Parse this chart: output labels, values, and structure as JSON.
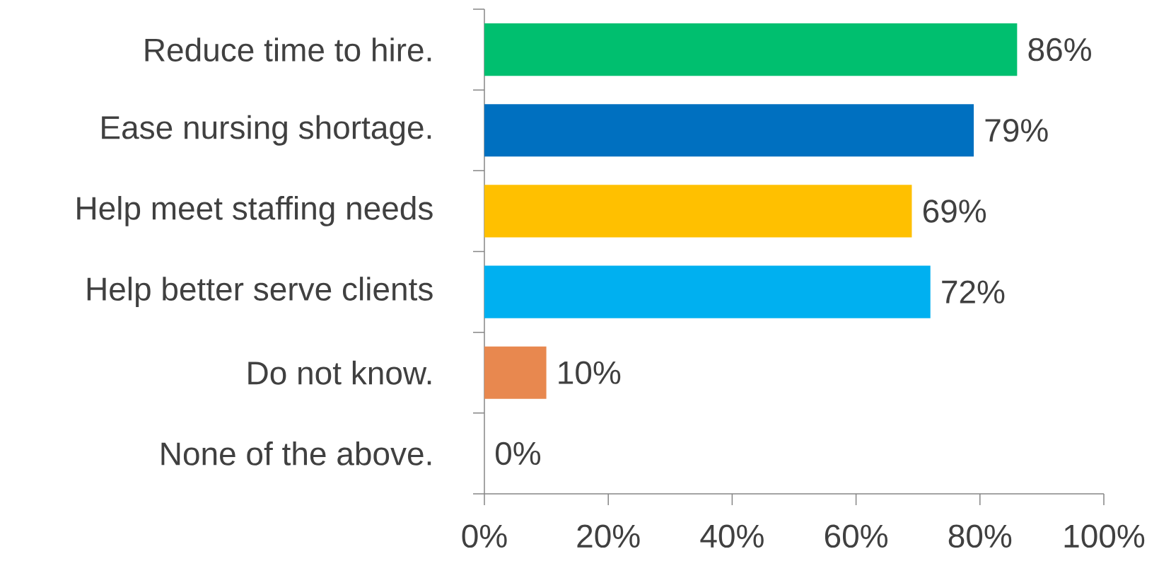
{
  "chart_data": {
    "type": "bar",
    "orientation": "horizontal",
    "categories": [
      "Reduce time to hire.",
      "Ease nursing shortage.",
      "Help meet staffing needs",
      "Help better serve clients",
      "Do not know.",
      "None of the above."
    ],
    "values": [
      86,
      79,
      69,
      72,
      10,
      0
    ],
    "colors": [
      "#00bf6f",
      "#0070c0",
      "#ffc000",
      "#00b0f0",
      "#e8884f",
      "#a5a5a5"
    ],
    "value_labels": [
      "86%",
      "79%",
      "69%",
      "72%",
      "10%",
      "0%"
    ],
    "xlim": [
      0,
      100
    ],
    "xticks": [
      {
        "value": 0,
        "label": "0%"
      },
      {
        "value": 20,
        "label": "20%"
      },
      {
        "value": 40,
        "label": "40%"
      },
      {
        "value": 60,
        "label": "60%"
      },
      {
        "value": 80,
        "label": "80%"
      },
      {
        "value": 100,
        "label": "100%"
      }
    ]
  }
}
